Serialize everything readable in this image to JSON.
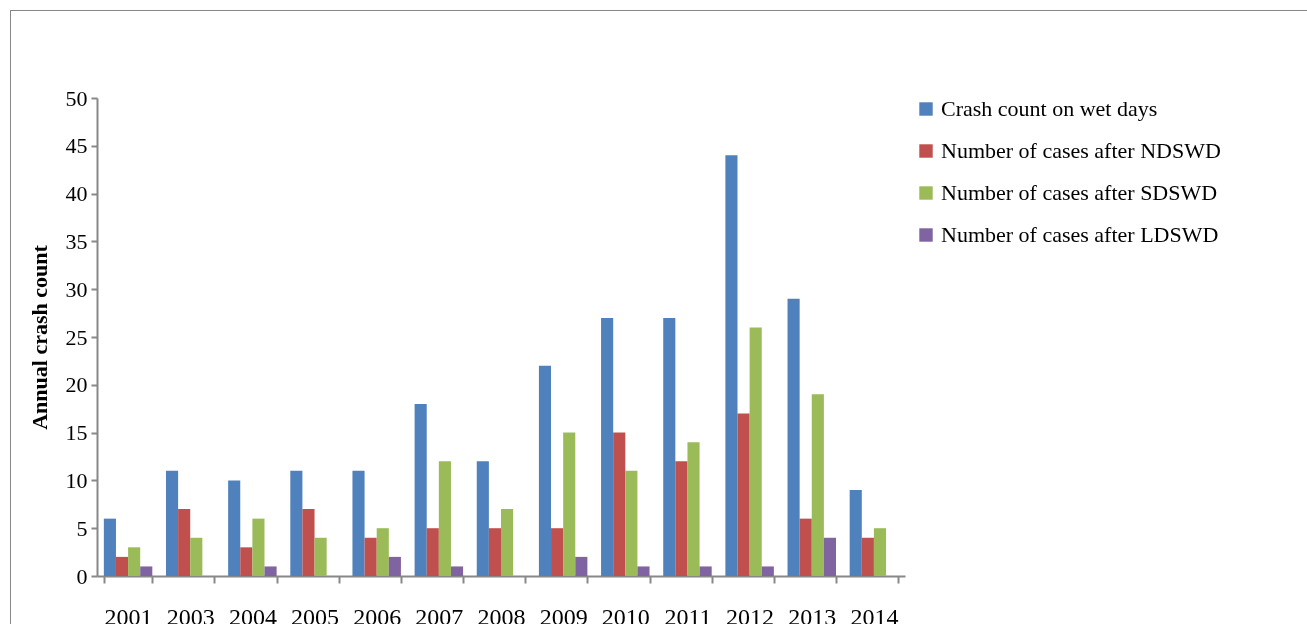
{
  "chart_data": {
    "type": "bar",
    "ylabel": "Annual crash count",
    "categories": [
      "2001",
      "2003",
      "2004",
      "2005",
      "2006",
      "2007",
      "2008",
      "2009",
      "2010",
      "2011",
      "2012",
      "2013",
      "2014"
    ],
    "series": [
      {
        "name": "Crash count on wet days",
        "color": "#4f81bd",
        "values": [
          6,
          11,
          10,
          11,
          11,
          18,
          12,
          22,
          27,
          27,
          44,
          29,
          9
        ]
      },
      {
        "name": "Number of cases after NDSWD",
        "color": "#c0504d",
        "values": [
          2,
          7,
          3,
          7,
          4,
          5,
          5,
          5,
          15,
          12,
          17,
          6,
          4
        ]
      },
      {
        "name": "Number of cases after SDSWD",
        "color": "#9bbb59",
        "values": [
          3,
          4,
          6,
          4,
          5,
          12,
          7,
          15,
          11,
          14,
          26,
          19,
          5
        ]
      },
      {
        "name": "Number of cases after LDSWD",
        "color": "#8064a2",
        "values": [
          1,
          0,
          1,
          0,
          2,
          1,
          0,
          2,
          1,
          1,
          1,
          4,
          0
        ]
      }
    ],
    "ylim": [
      0,
      50
    ],
    "yticks": [
      0,
      5,
      10,
      15,
      20,
      25,
      30,
      35,
      40,
      45,
      50
    ],
    "grid": false,
    "legend": "right"
  }
}
